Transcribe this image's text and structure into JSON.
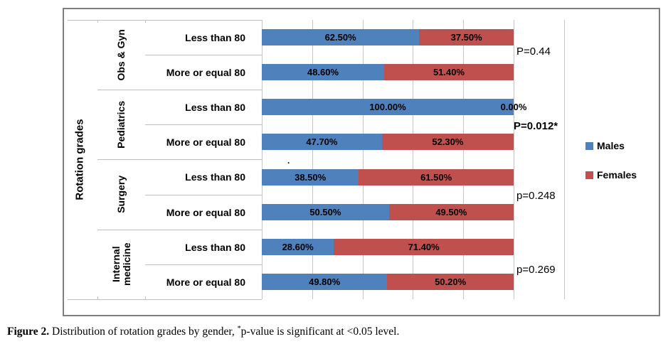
{
  "chart_data": {
    "type": "bar",
    "orientation": "horizontal-stacked",
    "axis_title": "Rotation grades",
    "xlim": [
      0,
      120
    ],
    "gridline_step_percent": 20,
    "grid": true,
    "legend_position": "right",
    "legend": {
      "males": "Males",
      "females": "Females"
    },
    "series_colors": {
      "Males": "#4f81bd",
      "Females": "#c0504d"
    },
    "artifact_dot": ".",
    "groups": [
      {
        "name": "Obs & Gyn",
        "p_value": "P=0.44",
        "rows": [
          {
            "label": "Less than 80",
            "males": 62.5,
            "females": 37.5,
            "males_label": "62.50%",
            "females_label": "37.50%"
          },
          {
            "label": "More or equal 80",
            "males": 48.6,
            "females": 51.4,
            "males_label": "48.60%",
            "females_label": "51.40%"
          }
        ]
      },
      {
        "name": "Pediatrics",
        "p_value": "P=0.012*",
        "rows": [
          {
            "label": "Less than 80",
            "males": 100,
            "females": 0,
            "males_label": "100.00%",
            "females_label": "0.00%"
          },
          {
            "label": "More or equal 80",
            "males": 47.7,
            "females": 52.3,
            "males_label": "47.70%",
            "females_label": "52.30%"
          }
        ]
      },
      {
        "name": "Surgery",
        "p_value": "p=0.248",
        "rows": [
          {
            "label": "Less than 80",
            "males": 38.5,
            "females": 61.5,
            "males_label": "38.50%",
            "females_label": "61.50%"
          },
          {
            "label": "More or equal 80",
            "males": 50.5,
            "females": 49.5,
            "males_label": "50.50%",
            "females_label": "49.50%"
          }
        ]
      },
      {
        "name": "Internal medicine",
        "p_value": "p=0.269",
        "rows": [
          {
            "label": "Less than 80",
            "males": 28.6,
            "females": 71.4,
            "males_label": "28.60%",
            "females_label": "71.40%"
          },
          {
            "label": "More or equal 80",
            "males": 49.8,
            "females": 50.2,
            "males_label": "49.80%",
            "females_label": "50.20%"
          }
        ]
      }
    ]
  },
  "caption": {
    "figure_label": "Figure 2.",
    "text_before": " Distribution of rotation grades by gender, ",
    "asterisk": "*",
    "text_after": "p-value is significant at <0.05 level."
  }
}
